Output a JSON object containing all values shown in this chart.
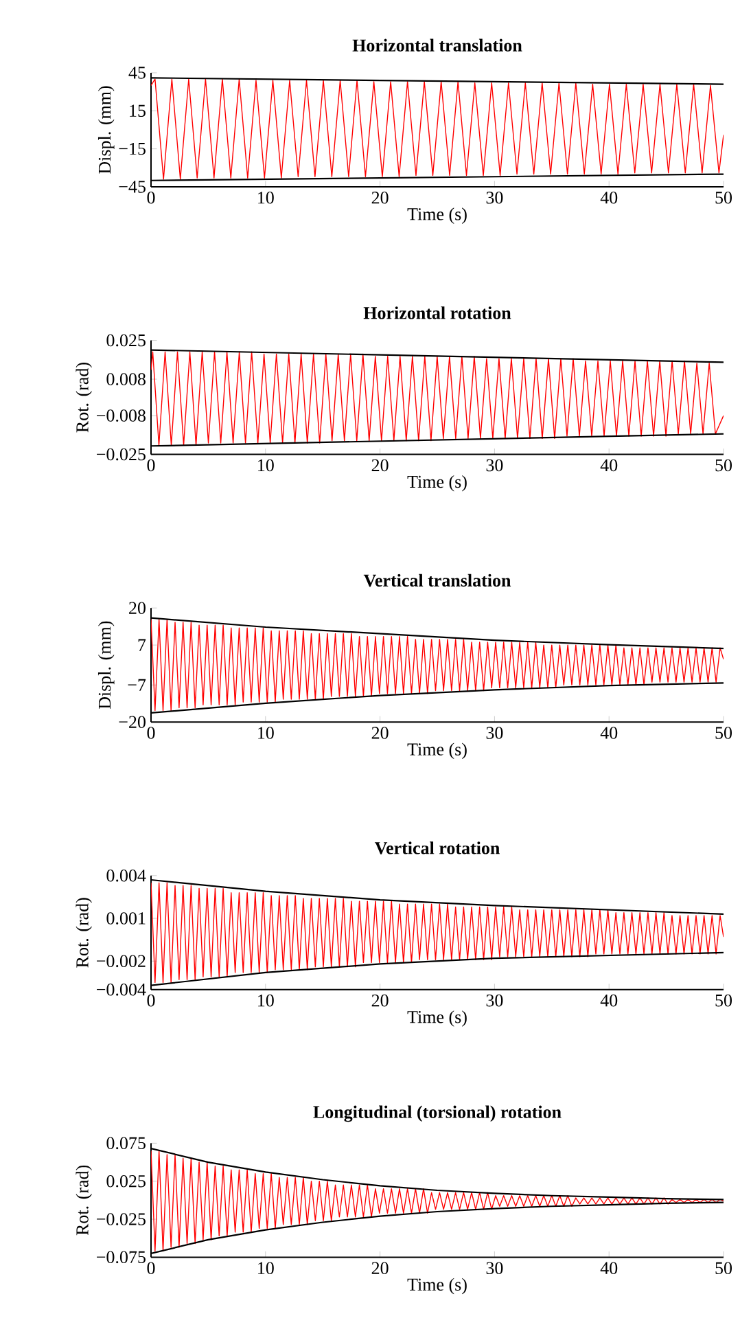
{
  "chart_data": [
    {
      "type": "line",
      "title": "Horizontal translation",
      "xlabel": "Time (s)",
      "ylabel": "Displ. (mm)",
      "xlim": [
        0,
        50
      ],
      "xticks": [
        0,
        10,
        20,
        30,
        40,
        50
      ],
      "ylim": [
        -45,
        45
      ],
      "yticks": [
        {
          "value": -45,
          "label": "−45"
        },
        {
          "value": -15,
          "label": "−15"
        },
        15,
        45
      ],
      "x": [
        0,
        0.35,
        1.09,
        1.82,
        2.56,
        3.29,
        4.03,
        4.76,
        5.5,
        6.23,
        6.97,
        7.7,
        8.44,
        9.17,
        9.91,
        10.64,
        11.38,
        12.11,
        12.85,
        13.58,
        14.32,
        15.05,
        15.79,
        16.52,
        17.26,
        17.99,
        18.73,
        19.46,
        20.2,
        20.93,
        21.67,
        22.4,
        23.14,
        23.87,
        24.61,
        25.34,
        26.08,
        26.81,
        27.55,
        28.28,
        29.02,
        29.75,
        30.49,
        31.22,
        31.96,
        32.69,
        33.43,
        34.16,
        34.9,
        35.63,
        36.37,
        37.1,
        37.84,
        38.57,
        39.31,
        40.04,
        40.78,
        41.51,
        42.25,
        42.98,
        43.72,
        44.45,
        45.19,
        45.92,
        46.66,
        47.39,
        48.13,
        48.86,
        49.6,
        50
      ],
      "series": [
        {
          "color": "#ff0000",
          "values": [
            35,
            40,
            -39,
            40,
            -39,
            40,
            -38,
            40,
            -38,
            40,
            -38,
            40,
            -38,
            39,
            -38,
            39,
            -38,
            39,
            -37,
            39,
            -37,
            39,
            -37,
            39,
            -37,
            39,
            -37,
            38,
            -37,
            38,
            -37,
            38,
            -36,
            38,
            -36,
            38,
            -36,
            38,
            -36,
            37,
            -36,
            37,
            -36,
            37,
            -35,
            37,
            -35,
            37,
            -35,
            37,
            -35,
            37,
            -35,
            36,
            -35,
            36,
            -35,
            36,
            -34,
            36,
            -34,
            36,
            -34,
            36,
            -34,
            36,
            -34,
            35,
            -34,
            -4
          ]
        },
        {
          "color": "#000000",
          "x": [
            0,
            50
          ],
          "values": [
            41,
            36
          ]
        },
        {
          "color": "#000000",
          "x": [
            0,
            50
          ],
          "values": [
            -40,
            -35
          ]
        }
      ]
    },
    {
      "type": "line",
      "title": "Horizontal rotation",
      "xlabel": "Time (s)",
      "ylabel": "Rot. (rad)",
      "xlim": [
        0,
        50
      ],
      "xticks": [
        0,
        10,
        20,
        30,
        40,
        50
      ],
      "ylim": [
        -0.025,
        0.025
      ],
      "yticks": [
        {
          "value": -0.025,
          "label": "−0.025"
        },
        {
          "value": -0.008,
          "label": "−0.008"
        },
        0.008,
        0.025
      ],
      "x": [
        0,
        0.15,
        0.69,
        1.23,
        1.77,
        2.31,
        2.85,
        3.39,
        3.93,
        4.47,
        5.01,
        5.55,
        6.09,
        6.63,
        7.17,
        7.71,
        8.25,
        8.79,
        9.33,
        9.87,
        10.41,
        10.95,
        11.49,
        12.03,
        12.57,
        13.11,
        13.65,
        14.19,
        14.73,
        15.27,
        15.81,
        16.35,
        16.89,
        17.43,
        17.97,
        18.51,
        19.05,
        19.59,
        20.13,
        20.67,
        21.21,
        21.75,
        22.29,
        22.83,
        23.37,
        23.91,
        24.45,
        24.99,
        25.53,
        26.07,
        26.61,
        27.15,
        27.69,
        28.23,
        28.77,
        29.31,
        29.85,
        30.39,
        30.93,
        31.47,
        32.01,
        32.55,
        33.09,
        33.63,
        34.17,
        34.71,
        35.25,
        35.79,
        36.33,
        36.87,
        37.41,
        37.95,
        38.49,
        39.03,
        39.57,
        40.11,
        40.65,
        41.19,
        41.73,
        42.27,
        42.81,
        43.35,
        43.89,
        44.43,
        44.97,
        45.51,
        46.05,
        46.59,
        47.13,
        47.67,
        48.21,
        48.75,
        49.29,
        50
      ],
      "series": [
        {
          "color": "#ff0000",
          "values": [
            0.012,
            0.02,
            -0.021,
            0.02,
            -0.021,
            0.02,
            -0.021,
            0.02,
            -0.021,
            0.02,
            -0.02,
            0.02,
            -0.02,
            0.02,
            -0.02,
            0.02,
            -0.02,
            0.02,
            -0.02,
            0.019,
            -0.02,
            0.019,
            -0.02,
            0.019,
            -0.02,
            0.019,
            -0.02,
            0.019,
            -0.02,
            0.019,
            -0.019,
            0.019,
            -0.019,
            0.019,
            -0.019,
            0.019,
            -0.019,
            0.018,
            -0.019,
            0.018,
            -0.019,
            0.018,
            -0.019,
            0.018,
            -0.019,
            0.018,
            -0.019,
            0.018,
            -0.018,
            0.018,
            -0.018,
            0.018,
            -0.018,
            0.018,
            -0.018,
            0.017,
            -0.018,
            0.017,
            -0.018,
            0.017,
            -0.018,
            0.017,
            -0.018,
            0.017,
            -0.018,
            0.017,
            -0.018,
            0.017,
            -0.017,
            0.017,
            -0.017,
            0.016,
            -0.017,
            0.016,
            -0.017,
            0.016,
            -0.017,
            0.016,
            -0.017,
            0.016,
            -0.017,
            0.016,
            -0.017,
            0.016,
            -0.017,
            0.016,
            -0.016,
            0.016,
            -0.016,
            0.015,
            -0.016,
            0.015,
            -0.016,
            -0.008
          ]
        },
        {
          "color": "#000000",
          "x": [
            0,
            50
          ],
          "values": [
            0.0208,
            0.0154
          ]
        },
        {
          "color": "#000000",
          "x": [
            0,
            50
          ],
          "values": [
            -0.0213,
            -0.016
          ]
        }
      ]
    },
    {
      "type": "line",
      "title": "Vertical translation",
      "xlabel": "Time (s)",
      "ylabel": "Displ. (mm)",
      "xlim": [
        0,
        50
      ],
      "xticks": [
        0,
        10,
        20,
        30,
        40,
        50
      ],
      "ylim": [
        -20,
        20
      ],
      "yticks": [
        {
          "value": -20,
          "label": "−20"
        },
        {
          "value": -7,
          "label": "−7"
        },
        7,
        20
      ],
      "x": [
        0,
        0.35,
        0.7,
        1.05,
        1.4,
        1.75,
        2.1,
        2.45,
        2.8,
        3.15,
        3.5,
        3.85,
        4.2,
        4.55,
        4.9,
        5.25,
        5.6,
        5.95,
        6.3,
        6.65,
        7,
        7.35,
        7.7,
        8.05,
        8.4,
        8.75,
        9.1,
        9.45,
        9.8,
        10.15,
        10.5,
        10.85,
        11.2,
        11.55,
        11.9,
        12.25,
        12.6,
        12.95,
        13.3,
        13.65,
        14,
        14.35,
        14.7,
        15.05,
        15.4,
        15.75,
        16.1,
        16.45,
        16.8,
        17.15,
        17.5,
        17.85,
        18.2,
        18.55,
        18.9,
        19.25,
        19.6,
        19.95,
        20.3,
        20.65,
        21,
        21.35,
        21.7,
        22.05,
        22.4,
        22.75,
        23.1,
        23.45,
        23.8,
        24.15,
        24.5,
        24.85,
        25.2,
        25.55,
        25.9,
        26.25,
        26.6,
        26.95,
        27.3,
        27.65,
        28,
        28.35,
        28.7,
        29.05,
        29.4,
        29.75,
        30.1,
        30.45,
        30.8,
        31.15,
        31.5,
        31.85,
        32.2,
        32.55,
        32.9,
        33.25,
        33.6,
        33.95,
        34.3,
        34.65,
        35,
        35.35,
        35.7,
        36.05,
        36.4,
        36.75,
        37.1,
        37.45,
        37.8,
        38.15,
        38.5,
        38.85,
        39.2,
        39.55,
        39.9,
        40.25,
        40.6,
        40.95,
        41.3,
        41.65,
        42,
        42.35,
        42.7,
        43.05,
        43.4,
        43.75,
        44.1,
        44.45,
        44.8,
        45.15,
        45.5,
        45.85,
        46.2,
        46.55,
        46.9,
        47.25,
        47.6,
        47.95,
        48.3,
        48.65,
        49,
        49.35,
        49.7,
        50
      ],
      "series": [
        {
          "color": "#ff0000",
          "values": [
            16,
            -16,
            16,
            -16,
            16,
            -16,
            15,
            -15,
            15,
            -15,
            15,
            -15,
            14,
            -14,
            14,
            -14,
            14,
            -14,
            14,
            -14,
            13,
            -14,
            13,
            -13,
            13,
            -13,
            13,
            -13,
            13,
            -13,
            12,
            -13,
            12,
            -12,
            12,
            -12,
            12,
            -12,
            12,
            -12,
            11,
            -12,
            11,
            -12,
            11,
            -11,
            11,
            -11,
            11,
            -11,
            11,
            -11,
            10,
            -11,
            10,
            -11,
            10,
            -10,
            10,
            -10,
            10,
            -10,
            10,
            -10,
            10,
            -10,
            9,
            -10,
            9,
            -10,
            9,
            -9,
            9,
            -9,
            9,
            -9,
            9,
            -9,
            9,
            -9,
            8,
            -9,
            8,
            -9,
            8,
            -8,
            8,
            -8,
            8,
            -8,
            8,
            -8,
            8,
            -8,
            8,
            -8,
            8,
            -8,
            7,
            -8,
            7,
            -8,
            7,
            -7,
            7,
            -7,
            7,
            -7,
            7,
            -7,
            7,
            -7,
            7,
            -7,
            7,
            -7,
            7,
            -7,
            6,
            -7,
            6,
            -7,
            6,
            -7,
            6,
            -6,
            6,
            -6,
            6,
            -6,
            6,
            -6,
            6,
            -6,
            6,
            -6,
            6,
            -6,
            6,
            -6,
            6,
            -6,
            6,
            2
          ]
        },
        {
          "color": "#000000",
          "x": [
            0,
            10,
            20,
            30,
            40,
            50
          ],
          "values": [
            16.5,
            13.3,
            11,
            8.7,
            7.1,
            5.8
          ]
        },
        {
          "color": "#000000",
          "x": [
            0,
            10,
            20,
            30,
            40,
            50
          ],
          "values": [
            -16.8,
            -13.4,
            -10.7,
            -8.7,
            -7.2,
            -6.3
          ]
        }
      ]
    },
    {
      "type": "line",
      "title": "Vertical rotation",
      "xlabel": "Time (s)",
      "ylabel": "Rot. (rad)",
      "xlim": [
        0,
        50
      ],
      "xticks": [
        0,
        10,
        20,
        30,
        40,
        50
      ],
      "ylim": [
        -0.004,
        0.004
      ],
      "yticks": [
        {
          "value": -0.004,
          "label": "−0.004"
        },
        {
          "value": -0.002,
          "label": "−0.002"
        },
        0.001,
        0.004
      ],
      "x": [
        0,
        0.35,
        0.7,
        1.05,
        1.4,
        1.75,
        2.1,
        2.45,
        2.8,
        3.15,
        3.5,
        3.85,
        4.2,
        4.55,
        4.9,
        5.25,
        5.6,
        5.95,
        6.3,
        6.65,
        7,
        7.35,
        7.7,
        8.05,
        8.4,
        8.75,
        9.1,
        9.45,
        9.8,
        10.15,
        10.5,
        10.85,
        11.2,
        11.55,
        11.9,
        12.25,
        12.6,
        12.95,
        13.3,
        13.65,
        14,
        14.35,
        14.7,
        15.05,
        15.4,
        15.75,
        16.1,
        16.45,
        16.8,
        17.15,
        17.5,
        17.85,
        18.2,
        18.55,
        18.9,
        19.25,
        19.6,
        19.95,
        20.3,
        20.65,
        21,
        21.35,
        21.7,
        22.05,
        22.4,
        22.75,
        23.1,
        23.45,
        23.8,
        24.15,
        24.5,
        24.85,
        25.2,
        25.55,
        25.9,
        26.25,
        26.6,
        26.95,
        27.3,
        27.65,
        28,
        28.35,
        28.7,
        29.05,
        29.4,
        29.75,
        30.1,
        30.45,
        30.8,
        31.15,
        31.5,
        31.85,
        32.2,
        32.55,
        32.9,
        33.25,
        33.6,
        33.95,
        34.3,
        34.65,
        35,
        35.35,
        35.7,
        36.05,
        36.4,
        36.75,
        37.1,
        37.45,
        37.8,
        38.15,
        38.5,
        38.85,
        39.2,
        39.55,
        39.9,
        40.25,
        40.6,
        40.95,
        41.3,
        41.65,
        42,
        42.35,
        42.7,
        43.05,
        43.4,
        43.75,
        44.1,
        44.45,
        44.8,
        45.15,
        45.5,
        45.85,
        46.2,
        46.55,
        46.9,
        47.25,
        47.6,
        47.95,
        48.3,
        48.65,
        49,
        49.35,
        49.7,
        50
      ],
      "series": [
        {
          "color": "#ff0000",
          "values": [
            0.0035,
            -0.0035,
            0.0035,
            -0.0035,
            0.0035,
            -0.0035,
            0.0033,
            -0.0033,
            0.0033,
            -0.0033,
            0.0033,
            -0.0033,
            0.0031,
            -0.0031,
            0.0031,
            -0.0031,
            0.0031,
            -0.0031,
            0.0031,
            -0.0031,
            0.0028,
            -0.0028,
            0.0028,
            -0.0028,
            0.0028,
            -0.0028,
            0.0028,
            -0.0028,
            0.0028,
            -0.0028,
            0.0026,
            -0.0026,
            0.0026,
            -0.0026,
            0.0026,
            -0.0026,
            0.0026,
            -0.0026,
            0.0024,
            -0.0026,
            0.0024,
            -0.0024,
            0.0024,
            -0.0024,
            0.0024,
            -0.0024,
            0.0024,
            -0.0024,
            0.0024,
            -0.0024,
            0.0022,
            -0.0024,
            0.0022,
            -0.0021,
            0.0022,
            -0.0021,
            0.0022,
            -0.0021,
            0.0022,
            -0.0021,
            0.0022,
            -0.0021,
            0.002,
            -0.0021,
            0.002,
            -0.0021,
            0.002,
            -0.0019,
            0.002,
            -0.0019,
            0.002,
            -0.0019,
            0.002,
            -0.0019,
            0.002,
            -0.0019,
            0.0018,
            -0.0019,
            0.0018,
            -0.0019,
            0.0018,
            -0.0019,
            0.0018,
            -0.0019,
            0.0018,
            -0.0019,
            0.0018,
            -0.0017,
            0.0018,
            -0.0017,
            0.0018,
            -0.0017,
            0.0016,
            -0.0017,
            0.0016,
            -0.0017,
            0.0016,
            -0.0017,
            0.0016,
            -0.0017,
            0.0016,
            -0.0017,
            0.0016,
            -0.0017,
            0.0016,
            -0.0017,
            0.0016,
            -0.0017,
            0.0016,
            -0.0017,
            0.0016,
            -0.0015,
            0.0016,
            -0.0015,
            0.0016,
            -0.0015,
            0.0014,
            -0.0015,
            0.0014,
            -0.0015,
            0.0014,
            -0.0015,
            0.0014,
            -0.0015,
            0.0014,
            -0.0015,
            0.0014,
            -0.0015,
            0.0014,
            -0.0015,
            0.0012,
            -0.0015,
            0.0012,
            -0.0015,
            0.0012,
            -0.0015,
            0.0012,
            -0.0015,
            0.0012,
            -0.0015,
            0.0012,
            -0.0015,
            0.0012,
            -0.0003
          ]
        },
        {
          "color": "#000000",
          "x": [
            0,
            10,
            20,
            30,
            40,
            50
          ],
          "values": [
            0.0037,
            0.0029,
            0.0023,
            0.0019,
            0.0016,
            0.0013
          ]
        },
        {
          "color": "#000000",
          "x": [
            0,
            10,
            20,
            30,
            40,
            50
          ],
          "values": [
            -0.0037,
            -0.0028,
            -0.0022,
            -0.0018,
            -0.0016,
            -0.0014
          ]
        }
      ]
    },
    {
      "type": "line",
      "title": "Longitudinal (torsional) rotation",
      "xlabel": "Time (s)",
      "ylabel": "Rot. (rad)",
      "xlim": [
        0,
        50
      ],
      "xticks": [
        0,
        10,
        20,
        30,
        40,
        50
      ],
      "ylim": [
        -0.075,
        0.075
      ],
      "yticks": [
        {
          "value": -0.075,
          "label": "−0.075"
        },
        {
          "value": -0.025,
          "label": "−0.025"
        },
        0.025,
        0.075
      ],
      "x": [
        0,
        0.35,
        0.7,
        1.05,
        1.4,
        1.75,
        2.1,
        2.45,
        2.8,
        3.15,
        3.5,
        3.85,
        4.2,
        4.55,
        4.9,
        5.25,
        5.6,
        5.95,
        6.3,
        6.65,
        7,
        7.35,
        7.7,
        8.05,
        8.4,
        8.75,
        9.1,
        9.45,
        9.8,
        10.15,
        10.5,
        10.85,
        11.2,
        11.55,
        11.9,
        12.25,
        12.6,
        12.95,
        13.3,
        13.65,
        14,
        14.35,
        14.7,
        15.05,
        15.4,
        15.75,
        16.1,
        16.45,
        16.8,
        17.15,
        17.5,
        17.85,
        18.2,
        18.55,
        18.9,
        19.25,
        19.6,
        19.95,
        20.3,
        20.65,
        21,
        21.35,
        21.7,
        22.05,
        22.4,
        22.75,
        23.1,
        23.45,
        23.8,
        24.15,
        24.5,
        24.85,
        25.2,
        25.55,
        25.9,
        26.25,
        26.6,
        26.95,
        27.3,
        27.65,
        28,
        28.35,
        28.7,
        29.05,
        29.4,
        29.75,
        30.1,
        30.45,
        30.8,
        31.15,
        31.5,
        31.85,
        32.2,
        32.55,
        32.9,
        33.25,
        33.6,
        33.95,
        34.3,
        34.65,
        35,
        35.35,
        35.7,
        36.05,
        36.4,
        36.75,
        37.1,
        37.45,
        37.8,
        38.15,
        38.5,
        38.85,
        39.2,
        39.55,
        39.9,
        40.25,
        40.6,
        40.95,
        41.3,
        41.65,
        42,
        42.35,
        42.7,
        43.05,
        43.4,
        43.75,
        44.1,
        44.45,
        44.8,
        45.15,
        45.5,
        45.85,
        46.2,
        46.55,
        46.9,
        47.25,
        47.6,
        47.95,
        48.3,
        48.65,
        49,
        49.35,
        49.7,
        50
      ],
      "series": [
        {
          "color": "#ff0000",
          "values": [
            0.065,
            -0.067,
            0.065,
            -0.067,
            0.06,
            -0.062,
            0.06,
            -0.062,
            0.055,
            -0.057,
            0.055,
            -0.057,
            0.05,
            -0.052,
            0.05,
            -0.052,
            0.045,
            -0.047,
            0.045,
            -0.047,
            0.04,
            -0.042,
            0.04,
            -0.042,
            0.04,
            -0.042,
            0.035,
            -0.037,
            0.035,
            -0.037,
            0.035,
            -0.037,
            0.03,
            -0.032,
            0.03,
            -0.032,
            0.03,
            -0.032,
            0.03,
            -0.032,
            0.025,
            -0.027,
            0.025,
            -0.027,
            0.025,
            -0.027,
            0.02,
            -0.022,
            0.02,
            -0.022,
            0.02,
            -0.022,
            0.02,
            -0.022,
            0.02,
            -0.022,
            0.015,
            -0.017,
            0.015,
            -0.017,
            0.015,
            -0.017,
            0.015,
            -0.017,
            0.015,
            -0.017,
            0.015,
            -0.017,
            0.015,
            -0.017,
            0.01,
            -0.012,
            0.01,
            -0.012,
            0.01,
            -0.012,
            0.01,
            -0.012,
            0.01,
            -0.012,
            0.01,
            -0.012,
            0.01,
            -0.012,
            0.01,
            -0.012,
            0.006,
            -0.008,
            0.006,
            -0.008,
            0.006,
            -0.008,
            0.006,
            -0.008,
            0.006,
            -0.008,
            0.006,
            -0.008,
            0.006,
            -0.008,
            0.006,
            -0.008,
            0.006,
            -0.008,
            0.006,
            -0.008,
            0.003,
            -0.005,
            0.003,
            -0.005,
            0.003,
            -0.005,
            0.003,
            -0.005,
            0.003,
            -0.005,
            0.003,
            -0.005,
            0.003,
            -0.005,
            0.003,
            -0.005,
            0.003,
            -0.005,
            0.003,
            -0.005,
            0.003,
            -0.005,
            0.003,
            -0.005,
            0.001,
            -0.003,
            0.001,
            -0.003,
            0.001,
            -0.003,
            0.001,
            -0.003,
            0.001,
            -0.003,
            0.001,
            -0.003,
            0.001,
            -0.001
          ]
        },
        {
          "color": "#000000",
          "x": [
            0,
            5,
            10,
            15,
            20,
            25,
            30,
            35,
            40,
            45,
            50
          ],
          "values": [
            0.068,
            0.05,
            0.037,
            0.027,
            0.019,
            0.013,
            0.009,
            0.006,
            0.004,
            0.002,
            0.001
          ]
        },
        {
          "color": "#000000",
          "x": [
            0,
            5,
            10,
            15,
            20,
            25,
            30,
            35,
            40,
            45,
            50
          ],
          "values": [
            -0.07,
            -0.052,
            -0.039,
            -0.029,
            -0.021,
            -0.015,
            -0.011,
            -0.008,
            -0.006,
            -0.004,
            -0.003
          ]
        }
      ]
    }
  ]
}
